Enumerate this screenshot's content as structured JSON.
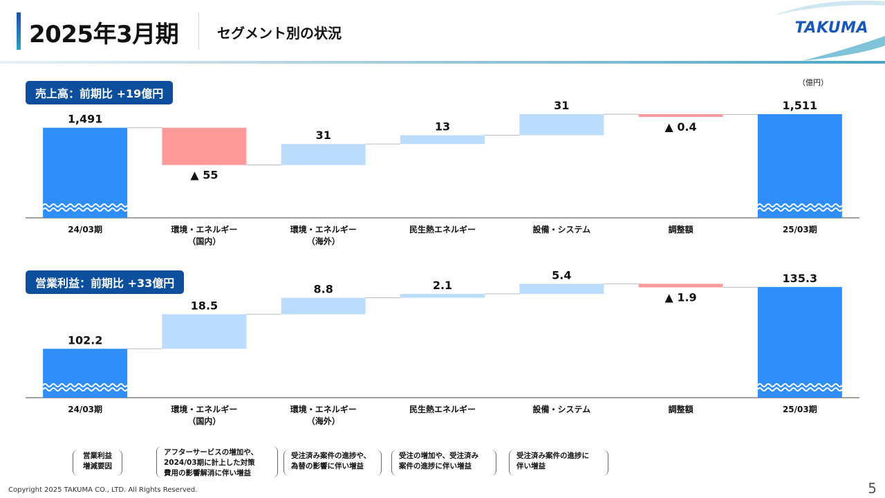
{
  "header": {
    "period": "2025年3月期",
    "subtitle": "セグメント別の状況",
    "logo": "TAKUMA"
  },
  "unit_label": "（億円）",
  "chart_data": [
    {
      "type": "bar",
      "subtype": "waterfall",
      "title": "売上高：前期比 +19億円",
      "categories": [
        "24/03期",
        "環境・エネルギー\n（国内）",
        "環境・エネルギー\n（海外）",
        "民生熱エネルギー",
        "設備・システム",
        "調整額",
        "25/03期"
      ],
      "values": [
        1491,
        -55,
        31,
        13,
        31,
        -0.4,
        1511
      ],
      "labels": [
        "1,491",
        "▲ 55",
        "31",
        "13",
        "31",
        "▲ 0.4",
        "1,511"
      ],
      "bar_kinds": [
        "total",
        "decrease",
        "increase",
        "increase",
        "increase",
        "decrease",
        "total"
      ],
      "axis_truncated": true,
      "colors": {
        "total": "#2f8ef8",
        "increase": "#bcdcfb",
        "decrease": "#ff9a9a"
      }
    },
    {
      "type": "bar",
      "subtype": "waterfall",
      "title": "営業利益：前期比 +33億円",
      "categories": [
        "24/03期",
        "環境・エネルギー\n（国内）",
        "環境・エネルギー\n（海外）",
        "民生熱エネルギー",
        "設備・システム",
        "調整額",
        "25/03期"
      ],
      "values": [
        102.2,
        18.5,
        8.8,
        2.1,
        5.4,
        -1.9,
        135.3
      ],
      "labels": [
        "102.2",
        "18.5",
        "8.8",
        "2.1",
        "5.4",
        "▲ 1.9",
        "135.3"
      ],
      "bar_kinds": [
        "total",
        "increase",
        "increase",
        "increase",
        "increase",
        "decrease",
        "total"
      ],
      "axis_truncated": true,
      "colors": {
        "total": "#2f8ef8",
        "increase": "#bcdcfb",
        "decrease": "#ff9a9a"
      }
    }
  ],
  "notes": {
    "heading": "営業利益\n増減要因",
    "items": [
      "アフターサービスの増加や、\n2024/03期に計上した対策\n費用の影響解消に伴い増益",
      "受注済み案件の進捗や、\n為替の影響に伴い増益",
      "受注の増加や、受注済み\n案件の進捗に伴い増益",
      "受注済み案件の進捗に\n伴い増益"
    ]
  },
  "footer": {
    "copyright": "Copyright  2025 TAKUMA CO., LTD.  All Rights Reserved.",
    "page": "5"
  }
}
